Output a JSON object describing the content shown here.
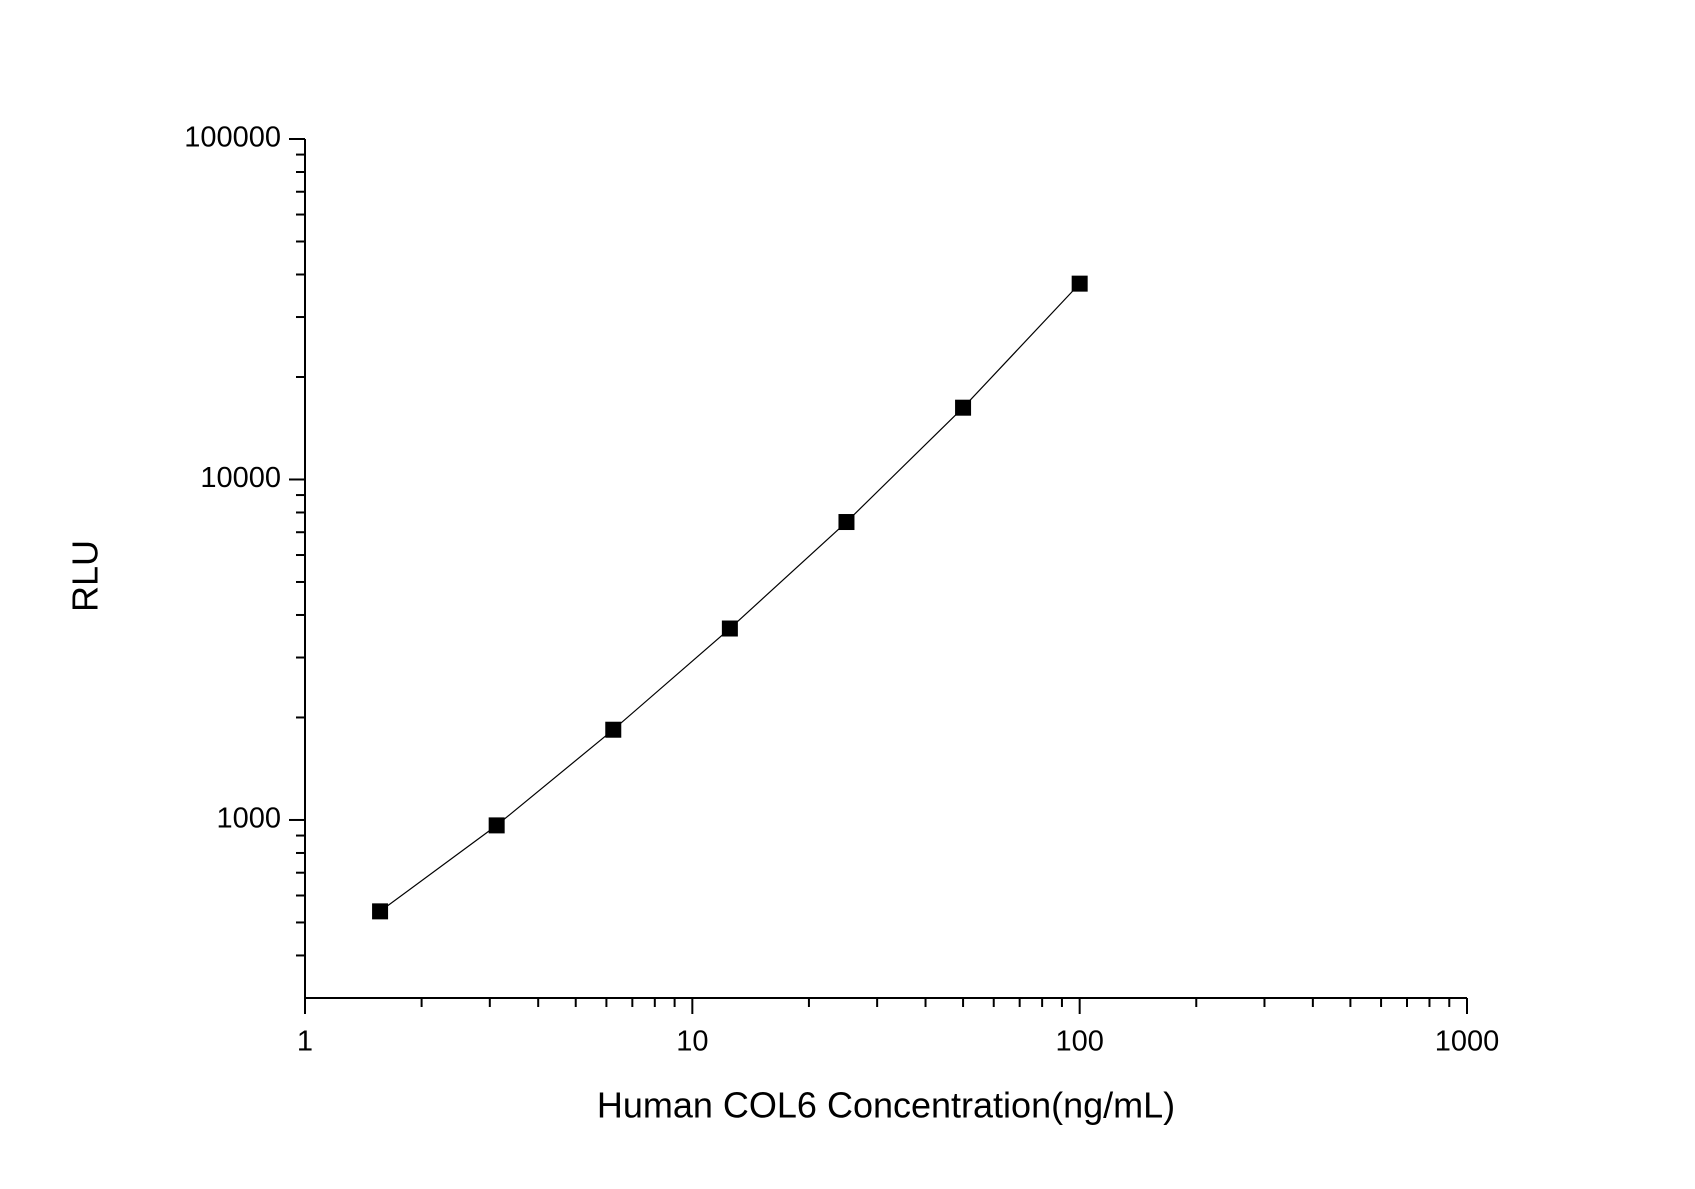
{
  "chart_data": {
    "type": "scatter-line",
    "x_label": "Human COL6 Concentration(ng/mL)",
    "y_label": "RLU",
    "x": [
      1.5625,
      3.125,
      6.25,
      12.5,
      25,
      50,
      100
    ],
    "series": [
      {
        "color": "#000000",
        "values": [
          539,
          964,
          1841,
          3650,
          7500,
          16250,
          37600
        ]
      }
    ],
    "xlim": [
      1,
      1000
    ],
    "xticks": [
      1,
      10,
      100,
      1000
    ],
    "ylim": [
      300,
      100000
    ],
    "yticks": [
      1000,
      10000,
      100000
    ],
    "xlog": true,
    "ylog": true,
    "grid": false
  }
}
